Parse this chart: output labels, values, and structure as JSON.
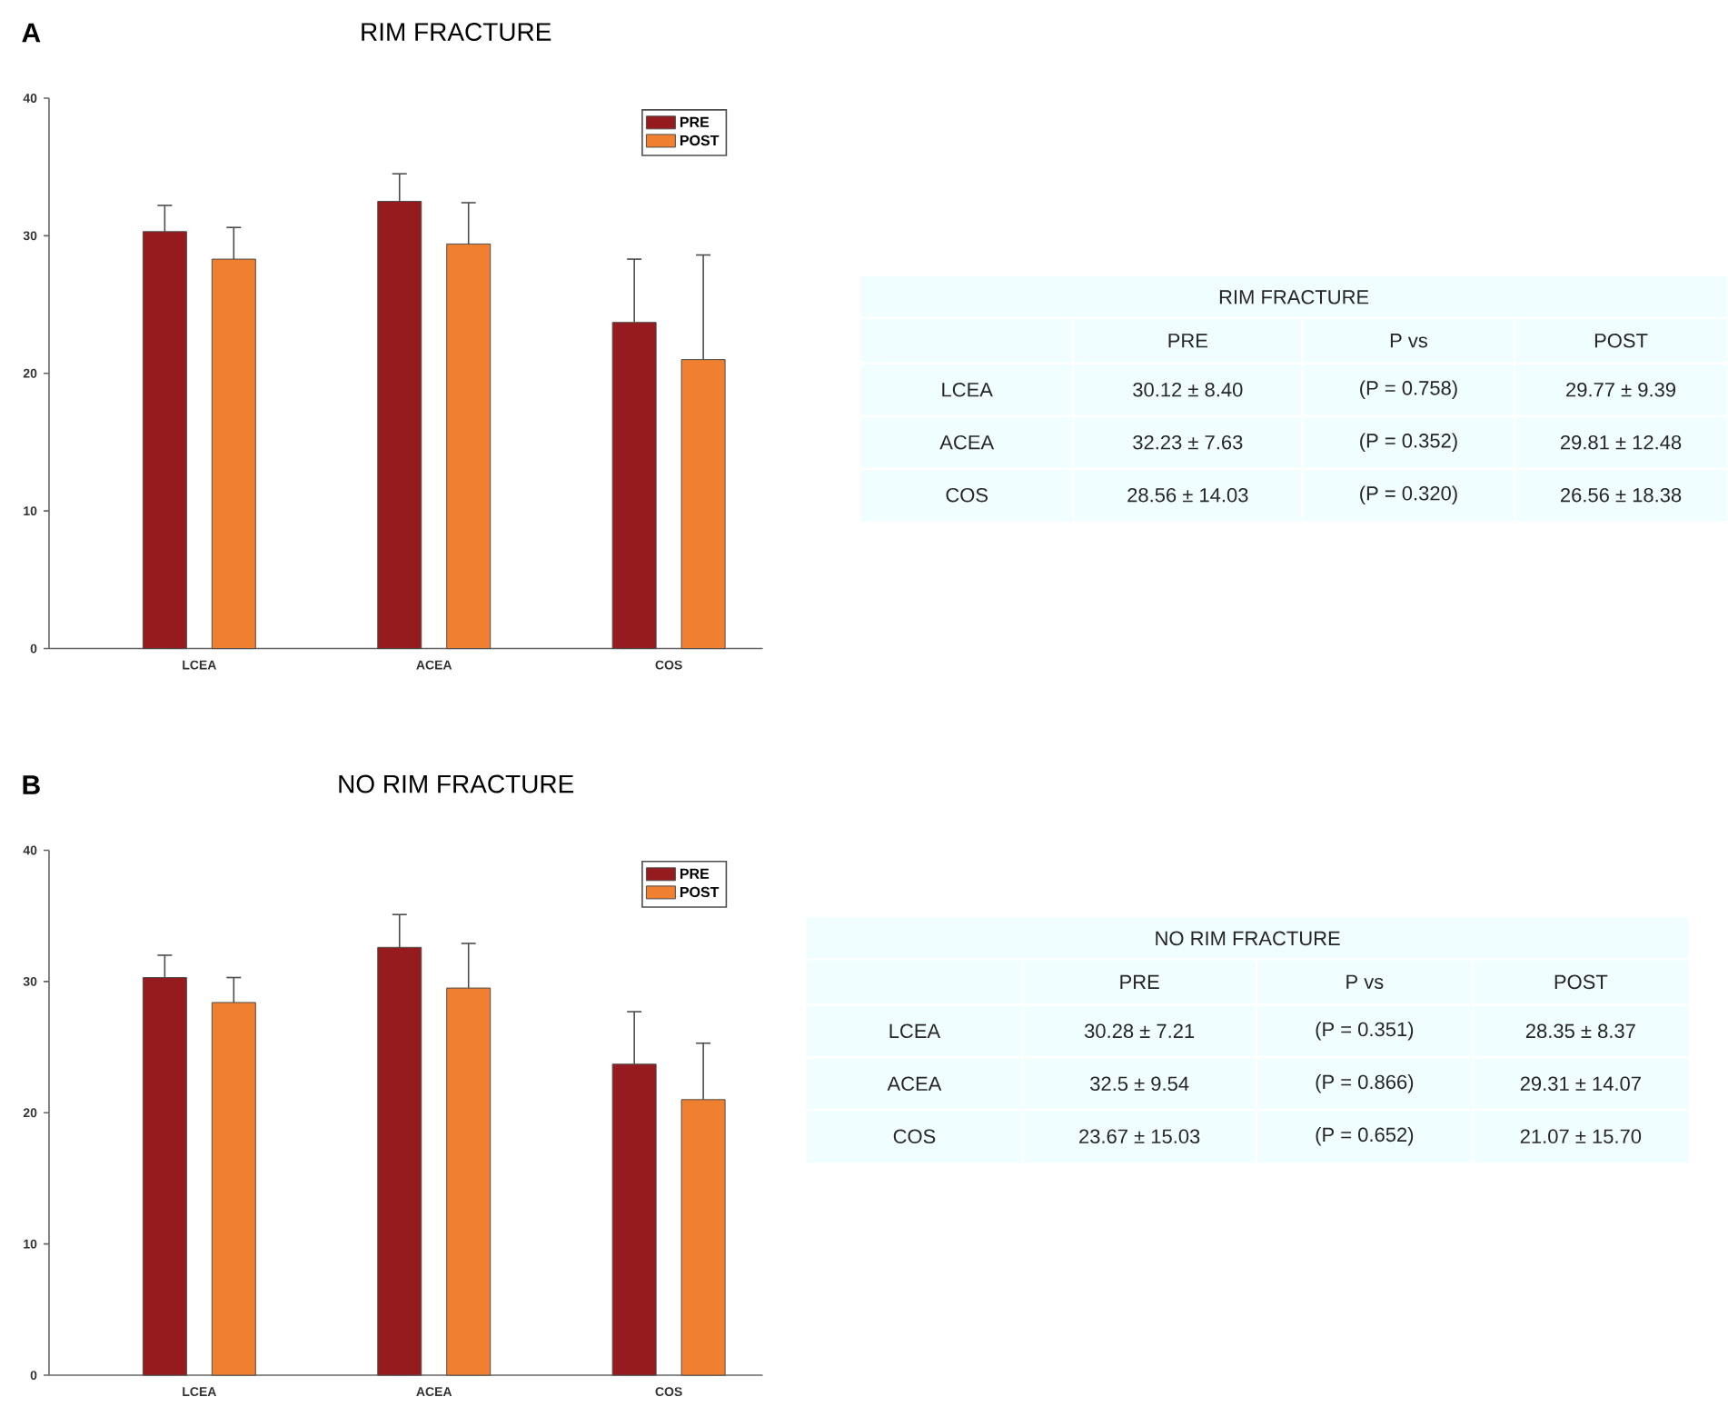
{
  "chart_data": [
    {
      "type": "bar",
      "title": "RIM FRACTURE",
      "annotations": [
        "A"
      ],
      "categories": [
        "LCEA",
        "ACEA",
        "COS"
      ],
      "ylim": [
        0,
        40
      ],
      "yticks": [
        0,
        10,
        20,
        30,
        40
      ],
      "legend": "top right",
      "series": [
        {
          "name": "PRE",
          "color": "#951b1e",
          "values": [
            30.3,
            32.5,
            23.7
          ],
          "errors": [
            [
              30.3,
              32.2
            ],
            [
              32.5,
              34.5
            ],
            [
              23.7,
              28.3
            ]
          ]
        },
        {
          "name": "POST",
          "color": "#f0802f",
          "values": [
            28.3,
            29.4,
            21.0
          ],
          "errors": [
            [
              28.3,
              30.6
            ],
            [
              29.4,
              32.4
            ],
            [
              21.0,
              28.6
            ]
          ]
        }
      ]
    },
    {
      "type": "other",
      "title": "RIM FRACTURE",
      "annotations": [
        "PRE",
        "P vs",
        "POST",
        "LCEA",
        "30.12 ± 8.40",
        "(P = 0.758)",
        "29.77 ± 9.39",
        "ACEA",
        "32.23 ± 7.63",
        "(P = 0.352)",
        "29.81 ± 12.48",
        "COS",
        "28.56 ± 14.03",
        "(P = 0.320)",
        "26.56 ± 18.38"
      ]
    },
    {
      "type": "bar",
      "title": "NO RIM FRACTURE",
      "annotations": [
        "B"
      ],
      "categories": [
        "LCEA",
        "ACEA",
        "COS"
      ],
      "ylim": [
        0,
        40
      ],
      "yticks": [
        0,
        10,
        20,
        30,
        40
      ],
      "legend": "top right",
      "series": [
        {
          "name": "PRE",
          "color": "#951b1e",
          "values": [
            30.3,
            32.6,
            23.7
          ],
          "errors": [
            [
              30.3,
              32.0
            ],
            [
              32.6,
              35.1
            ],
            [
              23.7,
              27.7
            ]
          ]
        },
        {
          "name": "POST",
          "color": "#f0802f",
          "values": [
            28.4,
            29.5,
            21.0
          ],
          "errors": [
            [
              28.4,
              30.3
            ],
            [
              29.5,
              32.9
            ],
            [
              21.0,
              25.3
            ]
          ]
        }
      ]
    },
    {
      "type": "other",
      "title": "NO RIM FRACTURE",
      "annotations": [
        "PRE",
        "P vs",
        "POST",
        "LCEA",
        "30.28 ± 7.21",
        "(P = 0.351)",
        "28.35 ± 8.37",
        "ACEA",
        "32.5 ± 9.54",
        "(P = 0.866)",
        "29.31 ± 14.07",
        "COS",
        "23.67 ± 15.03",
        "(P = 0.652)",
        "21.07 ± 15.70"
      ]
    }
  ]
}
